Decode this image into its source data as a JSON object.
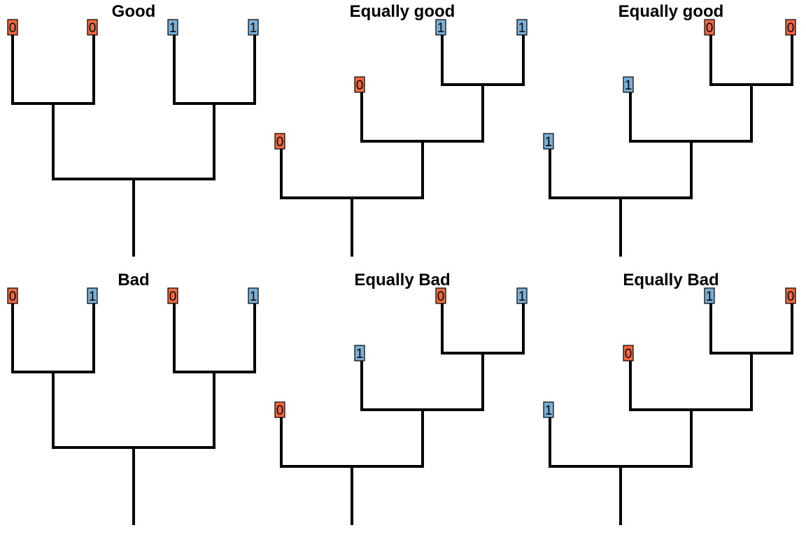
{
  "colors": {
    "state_0": "#EE6A43",
    "state_1": "#7AAFD6",
    "branch": "#000000"
  },
  "panels": [
    {
      "title": "Good",
      "shape": "balanced",
      "tips": [
        "0",
        "0",
        "1",
        "1"
      ]
    },
    {
      "title": "Equally good",
      "shape": "pectinate",
      "tips": [
        "0",
        "0",
        "1",
        "1"
      ]
    },
    {
      "title": "Equally good",
      "shape": "pectinate",
      "tips": [
        "1",
        "1",
        "0",
        "0"
      ]
    },
    {
      "title": "Bad",
      "shape": "balanced",
      "tips": [
        "0",
        "1",
        "0",
        "1"
      ]
    },
    {
      "title": "Equally Bad",
      "shape": "pectinate",
      "tips": [
        "0",
        "1",
        "0",
        "1"
      ]
    },
    {
      "title": "Equally Bad",
      "shape": "pectinate",
      "tips": [
        "1",
        "0",
        "1",
        "0"
      ]
    }
  ]
}
